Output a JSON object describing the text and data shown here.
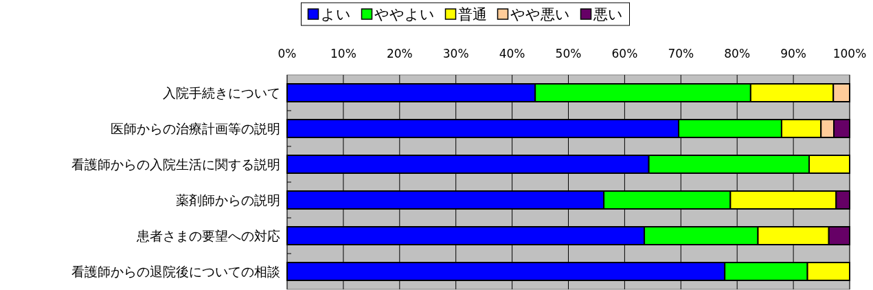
{
  "chart_data": {
    "type": "bar",
    "orientation": "horizontal",
    "stacked": true,
    "categories": [
      "入院手続きについて",
      "医師からの治療計画等の説明",
      "看護師からの入院生活に関する説明",
      "薬剤師からの説明",
      "患者さまの要望への対応",
      "看護師からの退院後についての相談"
    ],
    "series": [
      {
        "name": "よい",
        "color": "#0000ff",
        "values": [
          44.1,
          69.6,
          64.3,
          56.3,
          63.5,
          77.8
        ]
      },
      {
        "name": "ややよい",
        "color": "#00ff00",
        "values": [
          38.3,
          18.3,
          28.5,
          22.5,
          20.2,
          14.7
        ]
      },
      {
        "name": "普通",
        "color": "#ffff00",
        "values": [
          14.7,
          7.0,
          7.2,
          18.8,
          12.6,
          7.5
        ]
      },
      {
        "name": "やや悪い",
        "color": "#ffcc99",
        "values": [
          2.9,
          2.3,
          null,
          null,
          null,
          null
        ]
      },
      {
        "name": "悪い",
        "color": "#660066",
        "values": [
          null,
          2.8,
          null,
          2.4,
          3.7,
          null
        ]
      }
    ],
    "xlim": [
      0,
      100
    ],
    "xticks": [
      {
        "value": 0,
        "label": "0%"
      },
      {
        "value": 10,
        "label": "10%"
      },
      {
        "value": 20,
        "label": "20%"
      },
      {
        "value": 30,
        "label": "30%"
      },
      {
        "value": 40,
        "label": "40%"
      },
      {
        "value": 50,
        "label": "50%"
      },
      {
        "value": 60,
        "label": "60%"
      },
      {
        "value": 70,
        "label": "70%"
      },
      {
        "value": 80,
        "label": "80%"
      },
      {
        "value": 90,
        "label": "90%"
      },
      {
        "value": 100,
        "label": "100%"
      }
    ],
    "grid": "x",
    "legend": "top"
  }
}
